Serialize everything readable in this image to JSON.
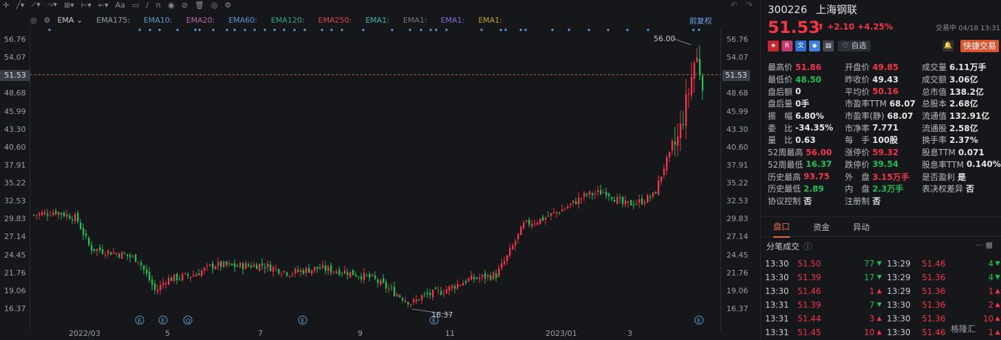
{
  "toolbar": {
    "font_tool": "Aa"
  },
  "chart": {
    "ema_label": "EMA",
    "ema_items": [
      {
        "label": "EMA175:",
        "color": "#9aa0aa"
      },
      {
        "label": "EMA10:",
        "color": "#5b9bd5"
      },
      {
        "label": "EMA20:",
        "color": "#b868a8"
      },
      {
        "label": "EMA60:",
        "color": "#5b9bd5"
      },
      {
        "label": "EMA120:",
        "color": "#2fa889"
      },
      {
        "label": "EMA250:",
        "color": "#d84a4a"
      },
      {
        "label": "EMA1:",
        "color": "#3fb8a8"
      },
      {
        "label": "EMA1:",
        "color": "#777777"
      },
      {
        "label": "EMA1:",
        "color": "#8a6cd8"
      },
      {
        "label": "EMA1:",
        "color": "#c9a227"
      }
    ],
    "fq_label": "前复权",
    "y_ticks": [
      "56.76",
      "54.07",
      "51.53",
      "48.68",
      "45.99",
      "43.30",
      "40.60",
      "37.91",
      "35.22",
      "32.53",
      "29.83",
      "27.14",
      "24.45",
      "21.76",
      "19.06",
      "16.37"
    ],
    "current_price_label": "51.53",
    "max_label": "56.00",
    "min_label": "16.37",
    "x_labels": [
      "2022/03",
      "5",
      "7",
      "9",
      "11",
      "2023/01",
      "3"
    ],
    "events": [
      "E",
      "E",
      "Q",
      "E",
      "E",
      "E"
    ],
    "colors": {
      "up": "#f23645",
      "down": "#1fbf53",
      "marker": "#5b9bd5"
    }
  },
  "chart_data": {
    "type": "candlestick",
    "y_range": [
      16.37,
      56.76
    ],
    "summary": {
      "high_label": "56.00",
      "low_label": "16.37",
      "last": 51.53
    },
    "x_labels": [
      "2022/03",
      "5",
      "7",
      "9",
      "11",
      "2023/01",
      "3"
    ]
  },
  "stock": {
    "code": "300226",
    "name": "上海钢联",
    "price": "51.53",
    "change_arrow": "⬆",
    "change": "+2.10",
    "change_pct": "+4.25%",
    "status": "交易中 04/18 13:31",
    "fav_label": "自选",
    "quick_trade": "快捷交易"
  },
  "stats": [
    [
      {
        "k": "最高价",
        "v": "51.86",
        "c": "red"
      },
      {
        "k": "开盘价",
        "v": "49.85",
        "c": "red"
      },
      {
        "k": "成交量",
        "v": "6.11万手",
        "c": ""
      }
    ],
    [
      {
        "k": "最低价",
        "v": "48.50",
        "c": "green"
      },
      {
        "k": "昨收价",
        "v": "49.43",
        "c": ""
      },
      {
        "k": "成交额",
        "v": "3.06亿",
        "c": ""
      }
    ],
    [
      {
        "k": "盘后额",
        "v": "0",
        "c": ""
      },
      {
        "k": "平均价",
        "v": "50.16",
        "c": "red"
      },
      {
        "k": "总市值",
        "v": "138.2亿",
        "c": ""
      }
    ],
    [
      {
        "k": "盘后量",
        "v": "0手",
        "c": ""
      },
      {
        "k": "市盈率TTM",
        "v": "68.07",
        "c": ""
      },
      {
        "k": "总股本",
        "v": "2.68亿",
        "c": ""
      }
    ],
    [
      {
        "k": "振　幅",
        "v": "6.80%",
        "c": ""
      },
      {
        "k": "市盈率(静)",
        "v": "68.07",
        "c": ""
      },
      {
        "k": "流通值",
        "v": "132.91亿",
        "c": ""
      }
    ],
    [
      {
        "k": "委　比",
        "v": "-34.35%",
        "c": ""
      },
      {
        "k": "市净率",
        "v": "7.771",
        "c": ""
      },
      {
        "k": "流通股",
        "v": "2.58亿",
        "c": ""
      }
    ],
    [
      {
        "k": "量　比",
        "v": "0.63",
        "c": ""
      },
      {
        "k": "每　手",
        "v": "100股",
        "c": ""
      },
      {
        "k": "换手率",
        "v": "2.37%",
        "c": ""
      }
    ],
    [
      {
        "k": "52周最高",
        "v": "56.00",
        "c": "red"
      },
      {
        "k": "涨停价",
        "v": "59.32",
        "c": "red"
      },
      {
        "k": "股息TTM",
        "v": "0.071",
        "c": ""
      }
    ],
    [
      {
        "k": "52周最低",
        "v": "16.37",
        "c": "green"
      },
      {
        "k": "跌停价",
        "v": "39.54",
        "c": "green"
      },
      {
        "k": "股息率TTM",
        "v": "0.140%",
        "c": ""
      }
    ],
    [
      {
        "k": "历史最高",
        "v": "93.75",
        "c": "red"
      },
      {
        "k": "外　盘",
        "v": "3.15万手",
        "c": "red"
      },
      {
        "k": "是否盈利",
        "v": "是",
        "c": ""
      }
    ],
    [
      {
        "k": "历史最低",
        "v": "2.89",
        "c": "green"
      },
      {
        "k": "内　盘",
        "v": "2.3万手",
        "c": "green"
      },
      {
        "k": "表决权差异",
        "v": "否",
        "c": ""
      }
    ],
    [
      {
        "k": "协议控制",
        "v": "否",
        "c": ""
      },
      {
        "k": "注册制",
        "v": "否",
        "c": ""
      },
      {
        "k": "",
        "v": "",
        "c": ""
      }
    ]
  ],
  "tabs": [
    "盘口",
    "资金",
    "异动"
  ],
  "ticks_title": "分笔成交",
  "ticks": [
    {
      "t1": "13:30",
      "p1": "51.50",
      "v1": "77",
      "d1": "down",
      "t2": "13:29",
      "p2": "51.46",
      "v2": "4",
      "d2": "down"
    },
    {
      "t1": "13:30",
      "p1": "51.39",
      "v1": "17",
      "d1": "down",
      "t2": "13:29",
      "p2": "51.36",
      "v2": "4",
      "d2": "down"
    },
    {
      "t1": "13:30",
      "p1": "51.46",
      "v1": "1",
      "d1": "up",
      "t2": "13:29",
      "p2": "51.36",
      "v2": "1",
      "d2": "up"
    },
    {
      "t1": "13:31",
      "p1": "51.39",
      "v1": "7",
      "d1": "down",
      "t2": "13:30",
      "p2": "51.36",
      "v2": "2",
      "d2": "up"
    },
    {
      "t1": "13:31",
      "p1": "51.44",
      "v1": "3",
      "d1": "up",
      "t2": "13:30",
      "p2": "51.36",
      "v2": "10",
      "d2": "up"
    },
    {
      "t1": "13:31",
      "p1": "51.45",
      "v1": "10",
      "d1": "up",
      "t2": "13:30",
      "p2": "51.46",
      "v2": "1",
      "d2": "up"
    }
  ],
  "watermark": "格隆汇"
}
